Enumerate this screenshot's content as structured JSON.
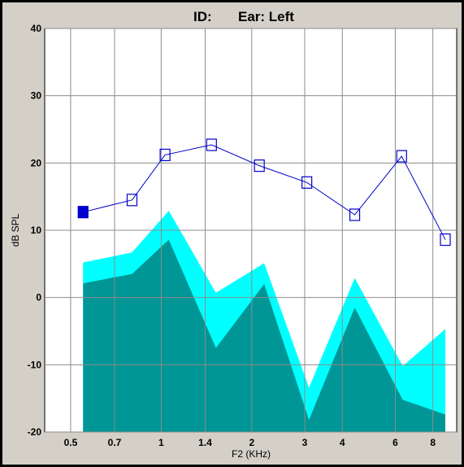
{
  "header": {
    "id_label": "ID:",
    "ear_label": "Ear: Left"
  },
  "chart_data": {
    "type": "line",
    "xlabel": "F2  (KHz)",
    "ylabel": "dB SPL",
    "xscale": "log",
    "xlim": [
      0.41,
      9.6
    ],
    "ylim": [
      -20,
      40
    ],
    "x_ticks": [
      0.5,
      0.7,
      1,
      1.4,
      2,
      3,
      4,
      6,
      8
    ],
    "x_tick_labels": [
      "0.5",
      "0.7",
      "1",
      "1.4",
      "2",
      "3",
      "4",
      "6",
      "8"
    ],
    "y_ticks": [
      -20,
      -10,
      0,
      10,
      20,
      30,
      40
    ],
    "y_tick_labels": [
      "-20",
      "-10",
      "0",
      "10",
      "20",
      "30",
      "40"
    ],
    "grid": true,
    "series": [
      {
        "x": [
          0.55,
          0.8,
          1.03,
          1.47,
          2.12,
          3.05,
          4.4,
          6.3,
          8.8
        ],
        "y": [
          12.7,
          14.5,
          21.2,
          22.7,
          19.6,
          17.1,
          12.3,
          21.0,
          8.6
        ],
        "marker": "square",
        "first_marker_filled": true,
        "color": "#0000cc"
      }
    ],
    "noise_bands": [
      {
        "color": "#00ffff",
        "x": [
          0.55,
          0.8,
          1.06,
          1.52,
          2.2,
          3.1,
          4.4,
          6.35,
          8.8
        ],
        "upper": [
          5.2,
          6.7,
          12.9,
          0.7,
          5.1,
          -13.4,
          2.9,
          -10.2,
          -4.7
        ],
        "lower": -20
      },
      {
        "color": "#009696",
        "x": [
          0.55,
          0.8,
          1.06,
          1.52,
          2.2,
          3.1,
          4.4,
          6.35,
          8.8
        ],
        "upper": [
          2.1,
          3.5,
          8.6,
          -7.5,
          2.0,
          -18.2,
          -1.5,
          -15.2,
          -17.4
        ],
        "lower": -20
      }
    ]
  }
}
